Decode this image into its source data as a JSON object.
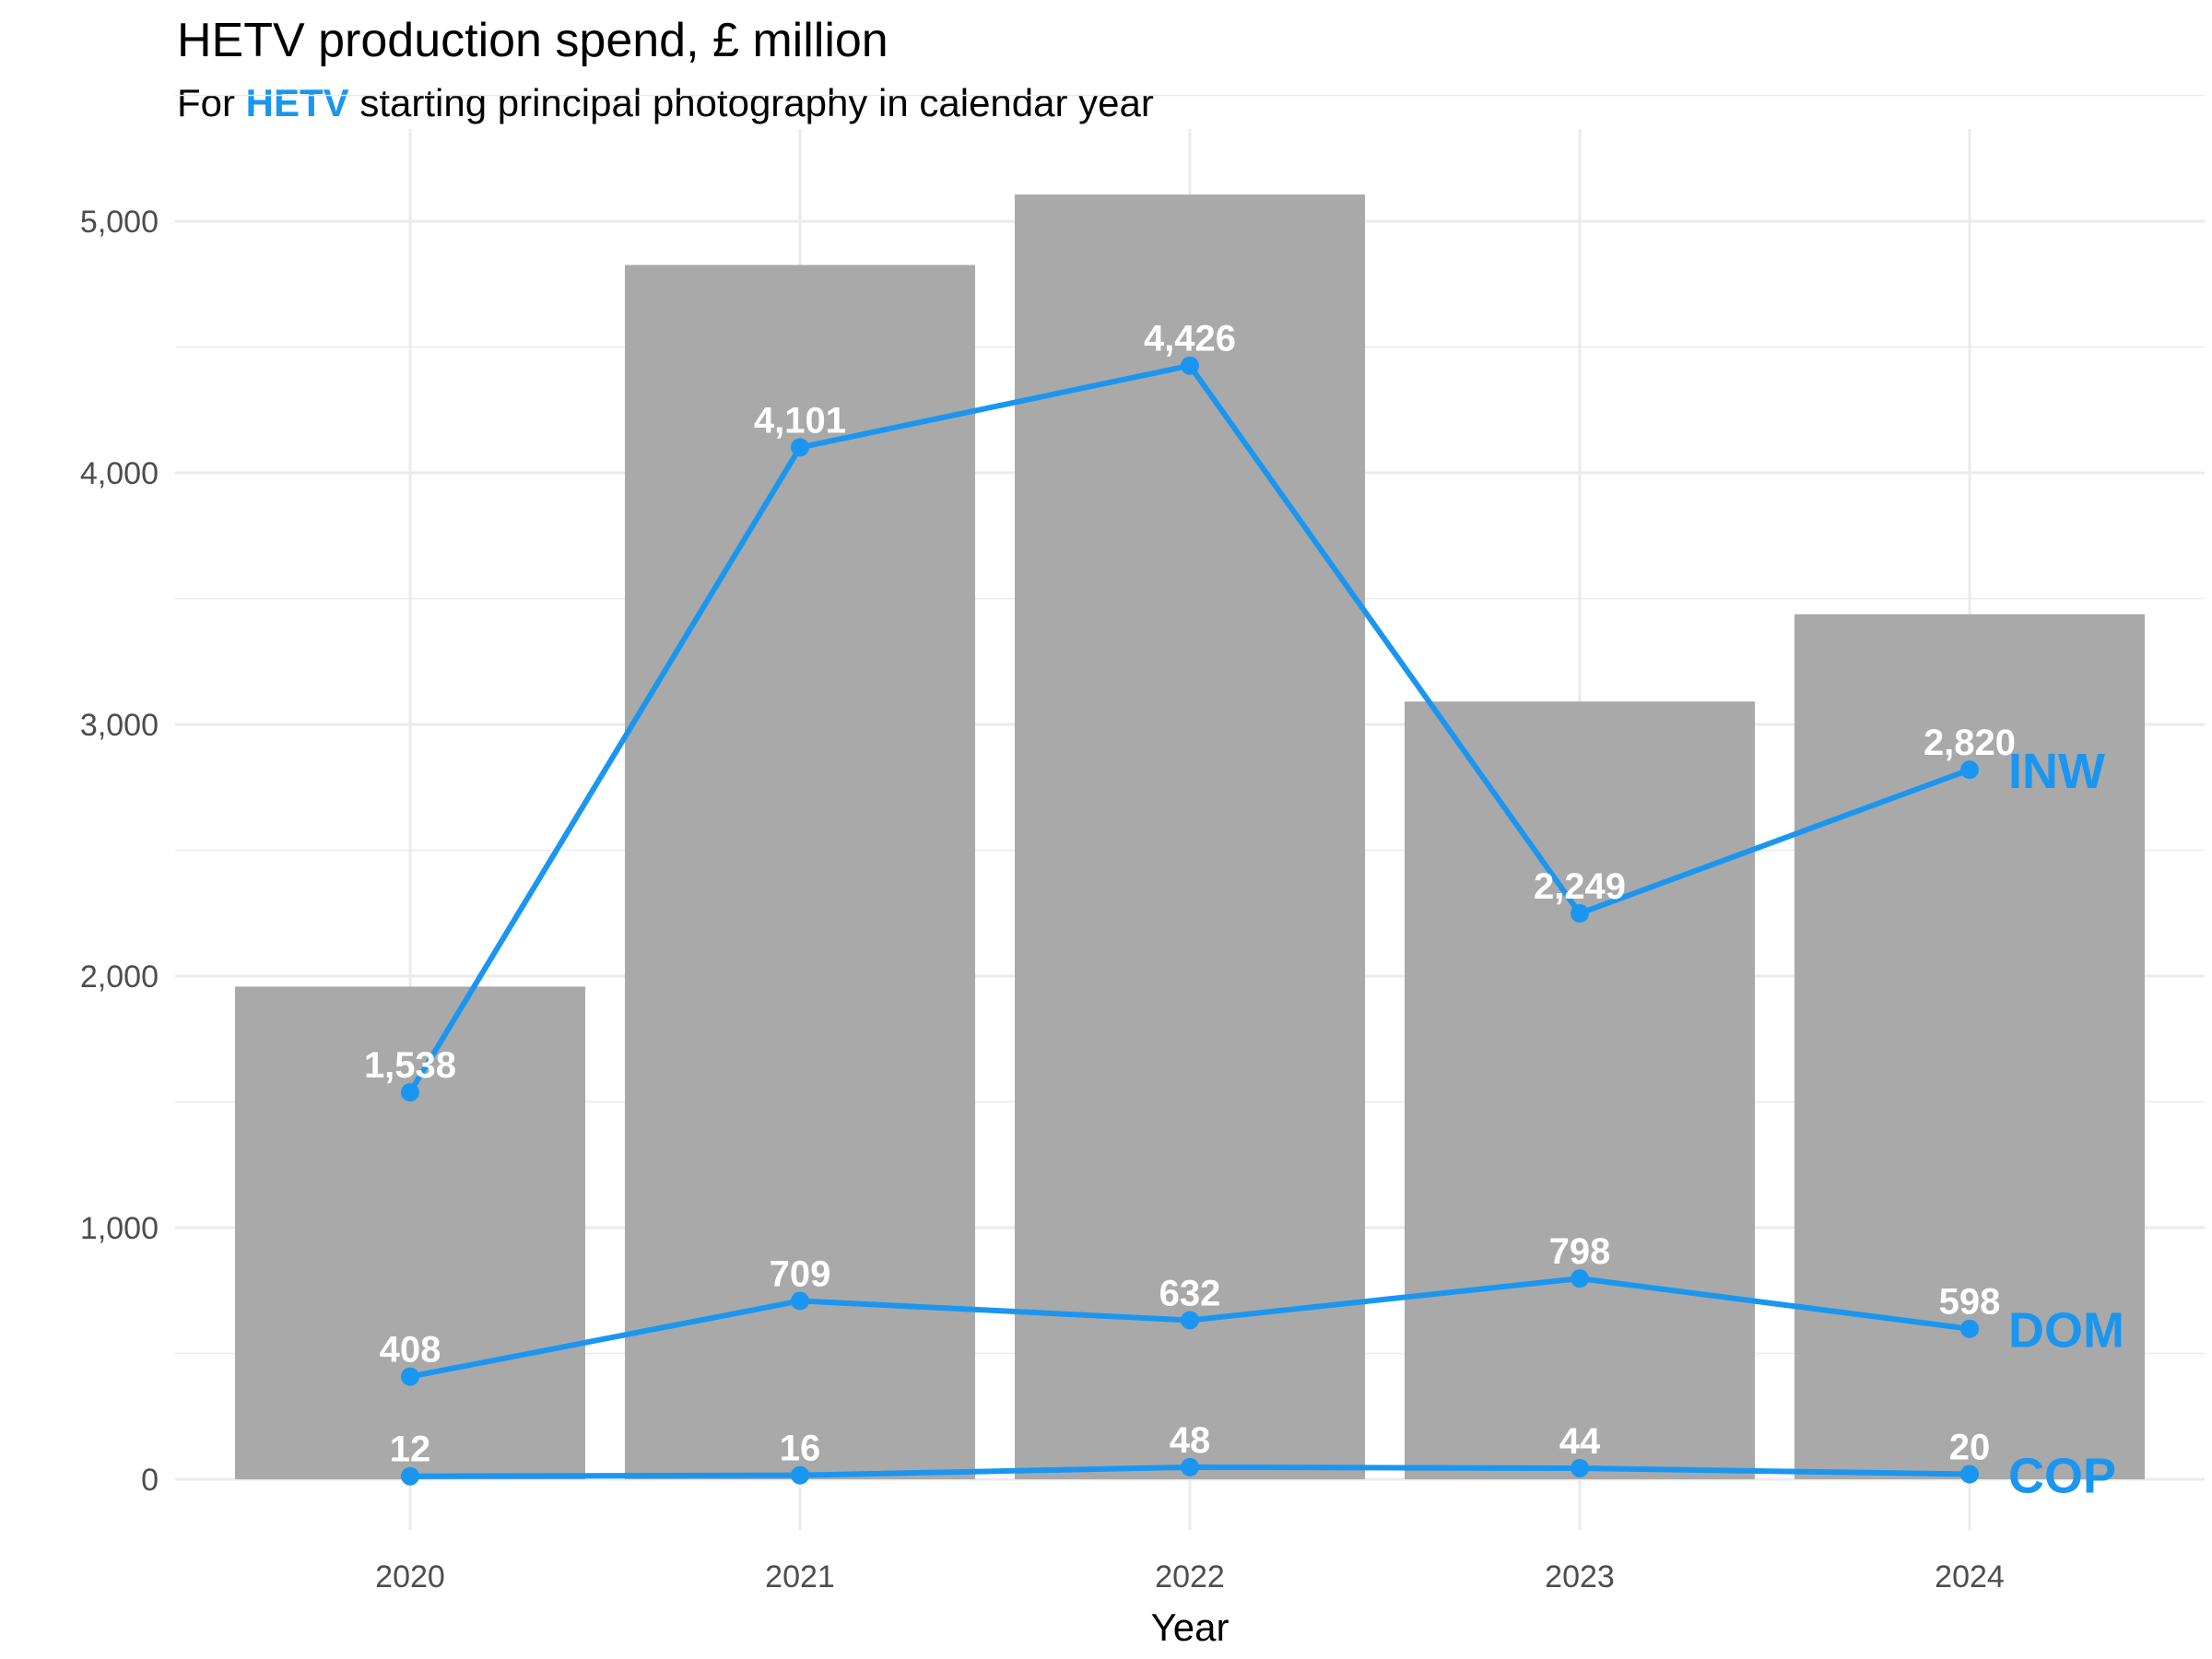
{
  "title": "HETV production spend, £ million",
  "subtitle": {
    "before": "For ",
    "highlight": "HETV",
    "after": " starting principal photography in calendar year"
  },
  "colors": {
    "bar": "#a9a9a9",
    "line": "#1a96f0",
    "highlight": "#1a96f0",
    "label": "#ffffff"
  },
  "chart_data": {
    "type": "bar",
    "categories": [
      "2020",
      "2021",
      "2022",
      "2023",
      "2024"
    ],
    "bar_values": [
      1958,
      4826,
      5106,
      3091,
      3438
    ],
    "series": [
      {
        "name": "INW",
        "type": "line",
        "values": [
          1538,
          4101,
          4426,
          2249,
          2820
        ],
        "labels": [
          "1,538",
          "4,101",
          "4,426",
          "2,249",
          "2,820"
        ]
      },
      {
        "name": "DOM",
        "type": "line",
        "values": [
          408,
          709,
          632,
          798,
          598
        ],
        "labels": [
          "408",
          "709",
          "632",
          "798",
          "598"
        ]
      },
      {
        "name": "COP",
        "type": "line",
        "values": [
          12,
          16,
          48,
          44,
          20
        ],
        "labels": [
          "12",
          "16",
          "48",
          "44",
          "20"
        ]
      }
    ],
    "xlabel": "Year",
    "ylabel": "",
    "ylim": [
      0,
      5500
    ],
    "y_ticks": [
      0,
      1000,
      2000,
      3000,
      4000,
      5000
    ],
    "y_tick_labels": [
      "0",
      "1,000",
      "2,000",
      "3,000",
      "4,000",
      "5,000"
    ],
    "grid": true,
    "legend": "none"
  }
}
